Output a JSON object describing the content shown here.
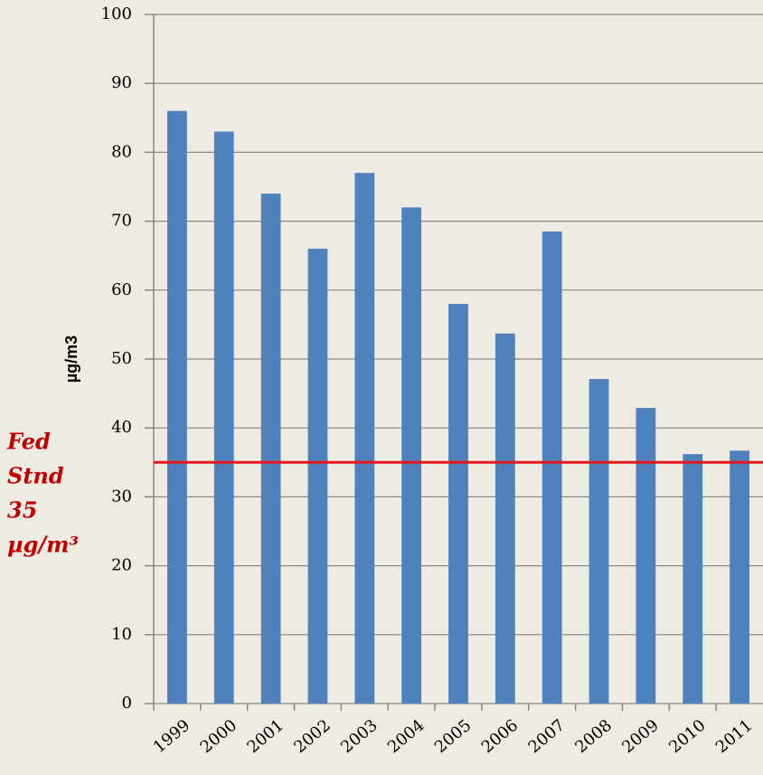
{
  "chart_data": {
    "type": "bar",
    "y_label": "µg/m3",
    "categories": [
      "1999",
      "2000",
      "2001",
      "2002",
      "2003",
      "2004",
      "2005",
      "2006",
      "2007",
      "2008",
      "2009",
      "2010",
      "2011"
    ],
    "values": [
      86,
      83,
      74,
      66,
      77,
      72,
      58,
      53.7,
      68.5,
      47.1,
      42.9,
      36.2,
      36.7
    ],
    "color": "#4f81bd",
    "ylim": [
      0,
      100
    ],
    "yticks": [
      0,
      10,
      20,
      30,
      40,
      50,
      60,
      70,
      80,
      90,
      100
    ],
    "grid": true,
    "reference_line": {
      "value": 35,
      "color": "#e31a1c"
    },
    "annotation": [
      "Fed",
      "Stnd",
      "35",
      "µg/m³"
    ]
  }
}
